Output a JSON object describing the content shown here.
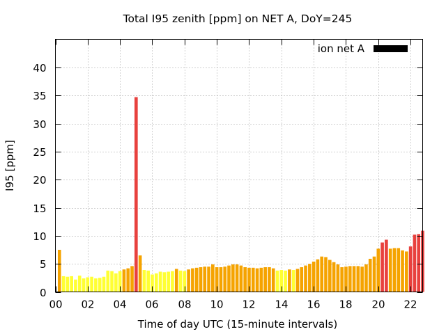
{
  "chart_data": {
    "type": "bar",
    "title": "Total I95 zenith [ppm] on NET A, DoY=245",
    "xlabel": "Time of day UTC (15-minute intervals)",
    "ylabel": "I95 [ppm]",
    "xlim": [
      0,
      22.75
    ],
    "ylim": [
      0,
      45
    ],
    "xticks": [
      0,
      2,
      4,
      6,
      8,
      10,
      12,
      14,
      16,
      18,
      20,
      22
    ],
    "xtick_labels": [
      "00",
      "02",
      "04",
      "06",
      "08",
      "10",
      "12",
      "14",
      "16",
      "18",
      "20",
      "22"
    ],
    "yticks": [
      0,
      5,
      10,
      15,
      20,
      25,
      30,
      35,
      40
    ],
    "ytick_labels": [
      "0",
      "5",
      "10",
      "15",
      "20",
      "25",
      "30",
      "35",
      "40"
    ],
    "grid": true,
    "legend": {
      "label": "ion net A",
      "placement": "top-right",
      "color": "#000000"
    },
    "bar_interval_hours": 0.25,
    "colors": {
      "low": "#ffff33",
      "mid": "#f5a300",
      "high": "#e8413e"
    },
    "x_start_hour": 0.25,
    "values": [
      7.5,
      2.8,
      2.7,
      2.8,
      2.2,
      2.9,
      2.4,
      2.6,
      2.7,
      2.4,
      2.5,
      2.7,
      3.8,
      3.7,
      3.3,
      3.7,
      4.0,
      4.2,
      4.6,
      34.7,
      6.5,
      3.9,
      3.8,
      3.1,
      3.3,
      3.6,
      3.5,
      3.6,
      3.7,
      4.1,
      3.8,
      3.7,
      4.0,
      4.2,
      4.3,
      4.4,
      4.5,
      4.5,
      4.9,
      4.4,
      4.4,
      4.5,
      4.7,
      4.9,
      4.9,
      4.7,
      4.4,
      4.3,
      4.3,
      4.2,
      4.3,
      4.4,
      4.4,
      4.2,
      3.8,
      3.9,
      3.8,
      4.0,
      3.9,
      4.1,
      4.4,
      4.7,
      5.0,
      5.4,
      5.8,
      6.3,
      6.2,
      5.7,
      5.3,
      4.9,
      4.4,
      4.5,
      4.6,
      4.6,
      4.6,
      4.5,
      4.9,
      5.9,
      6.3,
      7.7,
      8.8,
      9.3,
      7.7,
      7.8,
      7.8,
      7.4,
      7.2,
      8.1,
      10.2,
      10.3,
      10.9
    ]
  }
}
